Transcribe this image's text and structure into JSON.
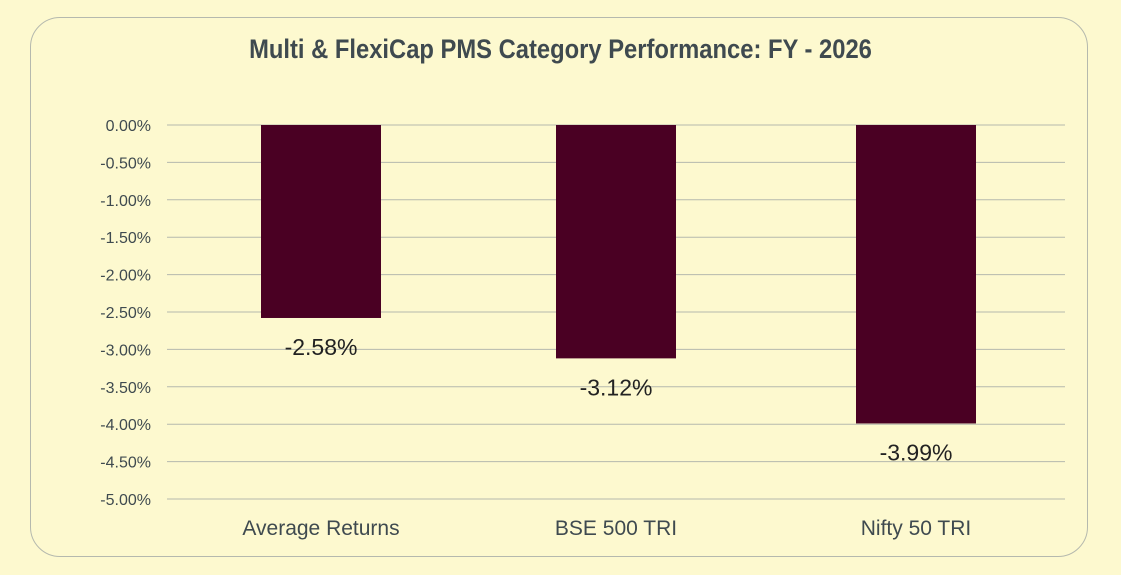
{
  "chart_data": {
    "type": "bar",
    "title": "Multi & FlexiCap PMS Category Performance: FY - 2026",
    "categories": [
      "Average Returns",
      "BSE 500 TRI",
      "Nifty 50 TRI"
    ],
    "values": [
      -2.58,
      -3.12,
      -3.99
    ],
    "data_labels": [
      "-2.58%",
      "-3.12%",
      "-3.99%"
    ],
    "ylim": [
      -5,
      0
    ],
    "yticks": [
      0,
      -0.5,
      -1,
      -1.5,
      -2,
      -2.5,
      -3,
      -3.5,
      -4,
      -4.5,
      -5
    ],
    "ytick_labels": [
      "0.00%",
      "-0.50%",
      "-1.00%",
      "-1.50%",
      "-2.00%",
      "-2.50%",
      "-3.00%",
      "-3.50%",
      "-4.00%",
      "-4.50%",
      "-5.00%"
    ],
    "xlabel": "",
    "ylabel": "",
    "grid": true,
    "bar_color": "#4a0023"
  }
}
